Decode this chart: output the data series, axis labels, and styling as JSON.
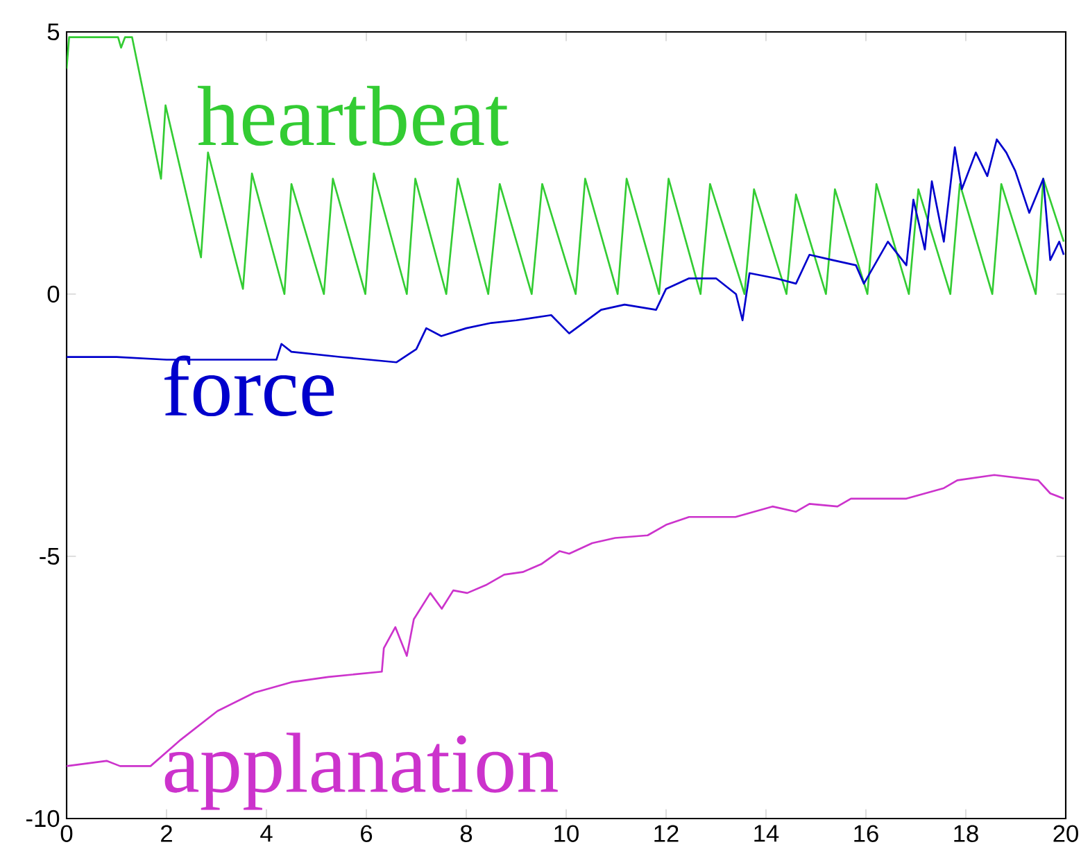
{
  "chart_data": {
    "type": "line",
    "xlim": [
      0,
      20
    ],
    "ylim": [
      -10,
      5
    ],
    "xticks": [
      0,
      2,
      4,
      6,
      8,
      10,
      12,
      14,
      16,
      18,
      20
    ],
    "yticks": [
      -10,
      -5,
      0,
      5
    ],
    "grid": false,
    "legend": false,
    "marker": "none",
    "line_style": "solid",
    "series": [
      {
        "name": "heartbeat",
        "color": "#33cc33",
        "x": [
          0,
          0.05,
          1.03,
          1.09,
          1.17,
          1.31,
          1.89,
          1.98,
          2.69,
          2.83,
          3.53,
          3.71,
          4.36,
          4.5,
          5.15,
          5.33,
          5.98,
          6.15,
          6.81,
          6.98,
          7.6,
          7.83,
          8.44,
          8.67,
          9.31,
          9.52,
          10.19,
          10.38,
          11.03,
          11.21,
          11.86,
          12.05,
          12.69,
          12.88,
          13.57,
          13.76,
          14.41,
          14.6,
          15.2,
          15.38,
          16.03,
          16.21,
          16.86,
          17.05,
          17.69,
          17.88,
          18.53,
          18.71,
          19.4,
          19.55,
          19.96
        ],
        "values": [
          4.3,
          4.9,
          4.9,
          4.7,
          4.9,
          4.9,
          2.2,
          3.6,
          0.7,
          2.7,
          0.1,
          2.3,
          0,
          2.1,
          0,
          2.2,
          0,
          2.3,
          0,
          2.2,
          0,
          2.2,
          0,
          2.1,
          0,
          2.1,
          0,
          2.2,
          0,
          2.2,
          0,
          2.2,
          0,
          2.1,
          0,
          2,
          0,
          1.9,
          0,
          2,
          0,
          2.1,
          0,
          2,
          0,
          2.1,
          0,
          2.1,
          0,
          2.2,
          1
        ]
      },
      {
        "name": "force",
        "color": "#0000cc",
        "x": [
          0,
          1,
          2,
          3,
          4.2,
          4.3,
          4.5,
          5.5,
          6.6,
          7,
          7.2,
          7.5,
          8,
          8.5,
          9,
          9.7,
          10.06,
          10.7,
          11.17,
          11.8,
          12,
          12.46,
          13,
          13.4,
          13.53,
          13.67,
          14.2,
          14.6,
          14.87,
          15.33,
          15.8,
          15.96,
          16.44,
          16.81,
          16.95,
          17.18,
          17.32,
          17.56,
          17.78,
          17.92,
          18.2,
          18.43,
          18.62,
          18.81,
          18.99,
          19.27,
          19.55,
          19.69,
          19.87,
          19.96
        ],
        "values": [
          -1.2,
          -1.2,
          -1.25,
          -1.25,
          -1.25,
          -0.95,
          -1.1,
          -1.2,
          -1.3,
          -1.05,
          -0.65,
          -0.8,
          -0.65,
          -0.55,
          -0.5,
          -0.4,
          -0.75,
          -0.3,
          -0.2,
          -0.3,
          0.1,
          0.3,
          0.3,
          0,
          -0.5,
          0.4,
          0.3,
          0.2,
          0.75,
          0.65,
          0.55,
          0.2,
          1,
          0.55,
          1.8,
          0.85,
          2.15,
          1,
          2.8,
          2,
          2.7,
          2.25,
          2.95,
          2.7,
          2.35,
          1.55,
          2.2,
          0.65,
          1,
          0.75
        ]
      },
      {
        "name": "applanation",
        "color": "#cc33cc",
        "x": [
          0,
          0.8,
          1.07,
          1.68,
          2.28,
          3.02,
          3.76,
          4.5,
          5.24,
          6.31,
          6.35,
          6.58,
          6.81,
          6.95,
          7.28,
          7.51,
          7.74,
          8.02,
          8.39,
          8.76,
          9.13,
          9.5,
          9.87,
          10.06,
          10.52,
          10.98,
          11.63,
          12,
          12.46,
          13.39,
          14.13,
          14.6,
          14.87,
          15.43,
          15.7,
          16.26,
          16.81,
          17.56,
          17.83,
          18.57,
          19.45,
          19.69,
          19.96
        ],
        "values": [
          -9,
          -8.9,
          -9,
          -9,
          -8.5,
          -7.95,
          -7.6,
          -7.4,
          -7.3,
          -7.2,
          -6.75,
          -6.35,
          -6.9,
          -6.2,
          -5.7,
          -6,
          -5.65,
          -5.7,
          -5.55,
          -5.35,
          -5.3,
          -5.15,
          -4.9,
          -4.95,
          -4.75,
          -4.65,
          -4.6,
          -4.4,
          -4.25,
          -4.25,
          -4.05,
          -4.15,
          -4,
          -4.05,
          -3.9,
          -3.9,
          -3.9,
          -3.7,
          -3.55,
          -3.45,
          -3.55,
          -3.8,
          -3.9
        ]
      }
    ]
  }
}
